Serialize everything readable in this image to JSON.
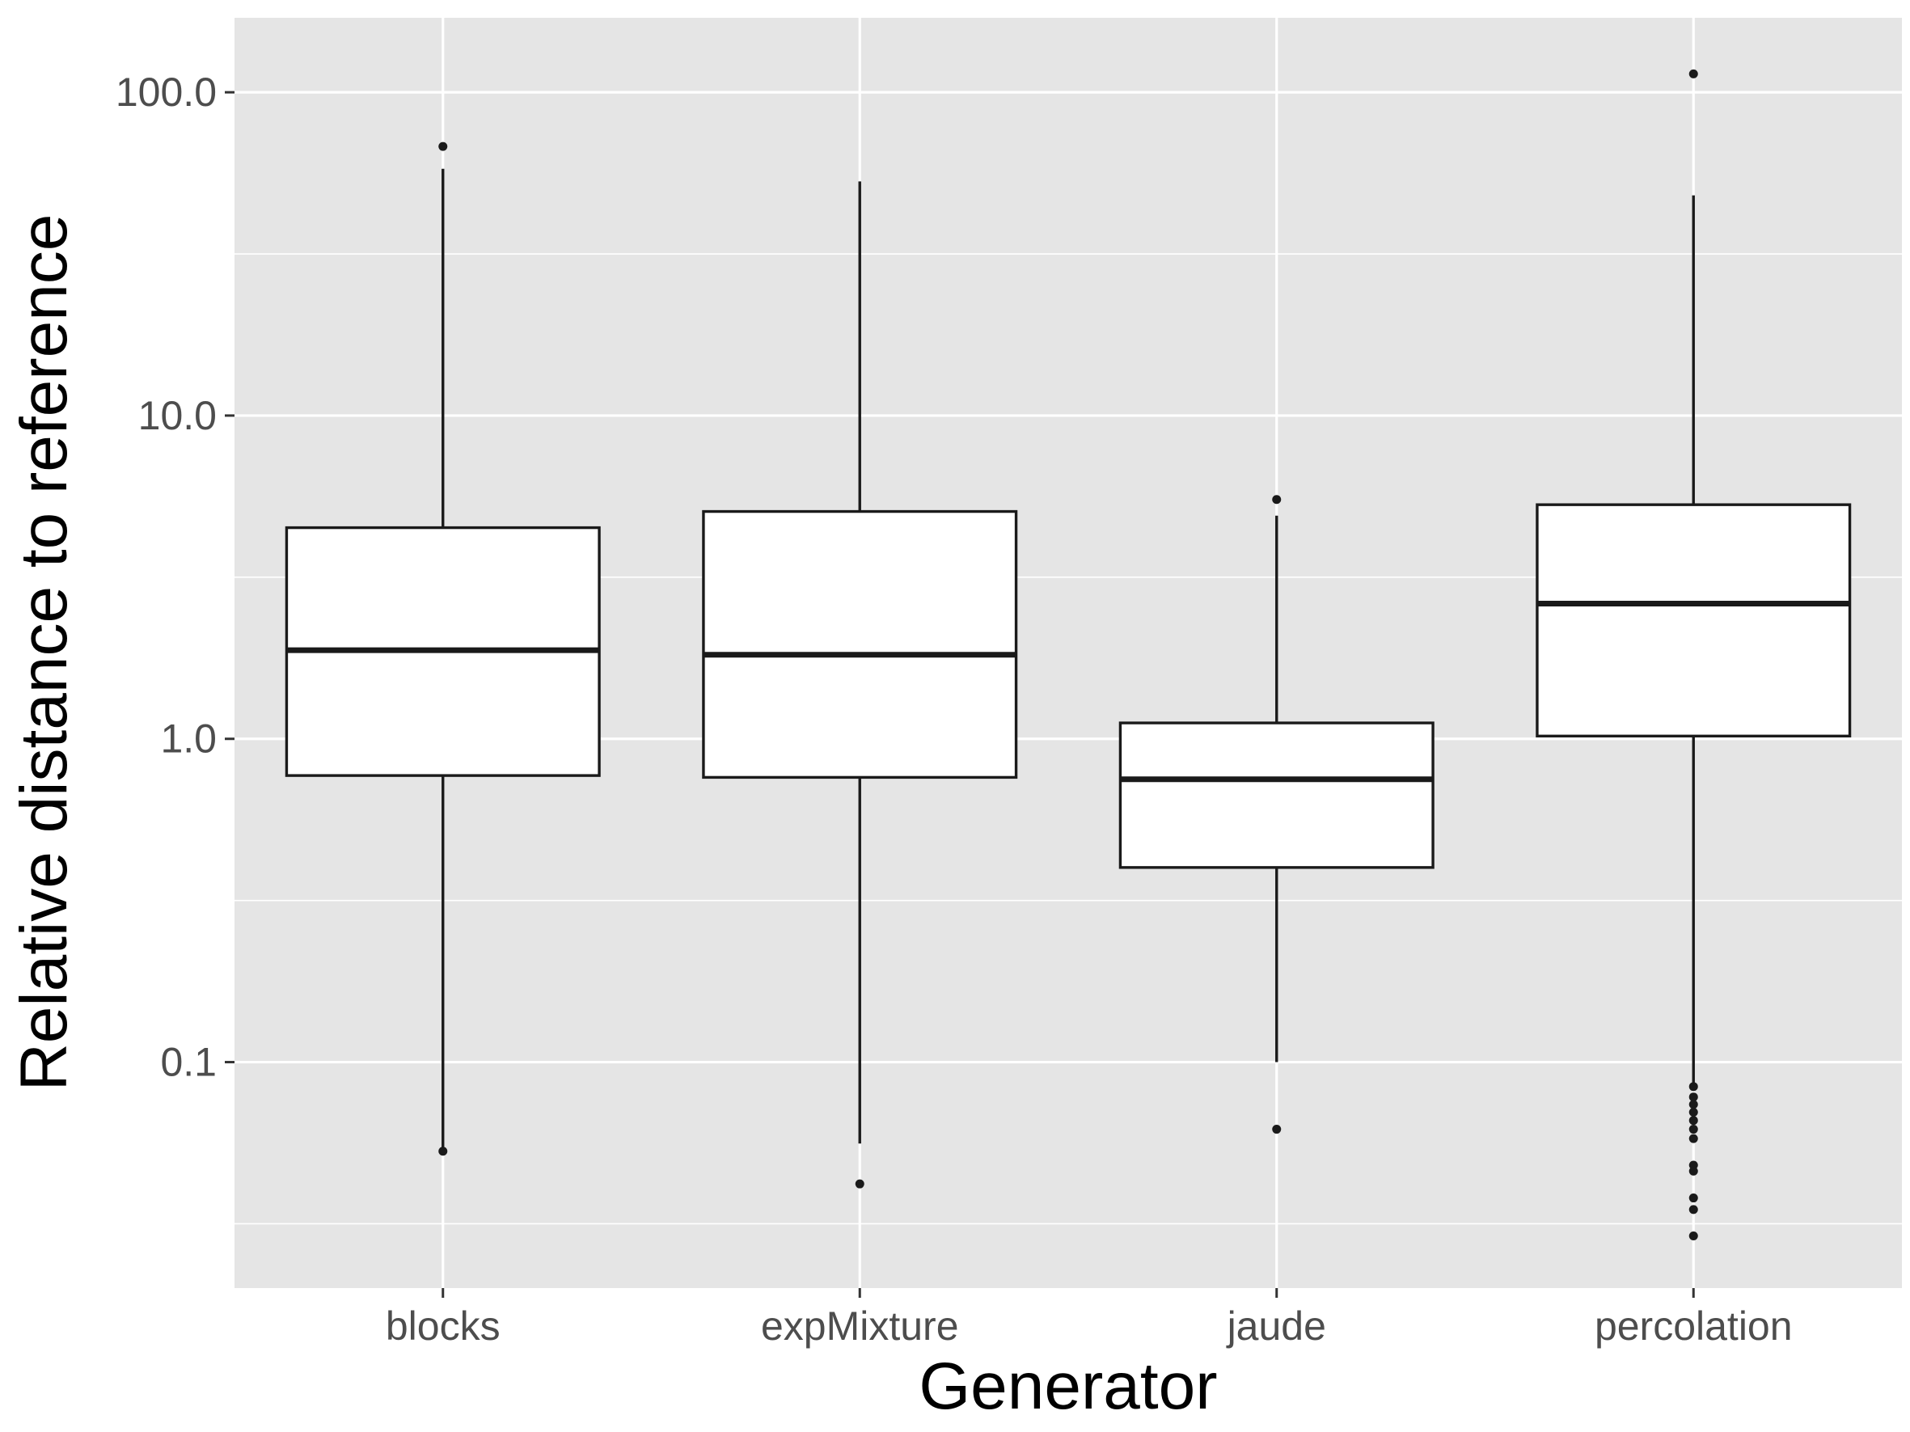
{
  "chart_data": {
    "type": "boxplot",
    "xlabel": "Generator",
    "ylabel": "Relative distance to reference",
    "y_scale": "log10",
    "ylim": [
      0.02,
      170
    ],
    "y_ticks": [
      0.1,
      1.0,
      10.0,
      100.0
    ],
    "y_tick_labels": [
      "0.1",
      "1.0",
      "10.0",
      "100.0"
    ],
    "grid": true,
    "colors": {
      "panel": "#e5e5e5",
      "grid": "#ffffff",
      "box_fill": "#ffffff",
      "line": "#1a1a1a",
      "point": "#1a1a1a",
      "tick_text": "#4d4d4d"
    },
    "categories": [
      "blocks",
      "expMixture",
      "jaude",
      "percolation"
    ],
    "boxes": [
      {
        "name": "blocks",
        "whisker_low": 0.053,
        "q1": 0.77,
        "median": 1.88,
        "q3": 4.5,
        "whisker_high": 58,
        "outliers": [
          0.053,
          68
        ]
      },
      {
        "name": "expMixture",
        "whisker_low": 0.056,
        "q1": 0.76,
        "median": 1.82,
        "q3": 5.05,
        "whisker_high": 53,
        "outliers": [
          0.042
        ]
      },
      {
        "name": "jaude",
        "whisker_low": 0.1,
        "q1": 0.4,
        "median": 0.75,
        "q3": 1.12,
        "whisker_high": 4.9,
        "outliers": [
          0.062,
          5.5
        ]
      },
      {
        "name": "percolation",
        "whisker_low": 0.085,
        "q1": 1.02,
        "median": 2.62,
        "q3": 5.3,
        "whisker_high": 48,
        "outliers": [
          0.084,
          0.078,
          0.074,
          0.07,
          0.066,
          0.062,
          0.058,
          0.048,
          0.046,
          0.038,
          0.035,
          0.029,
          114
        ]
      }
    ]
  }
}
